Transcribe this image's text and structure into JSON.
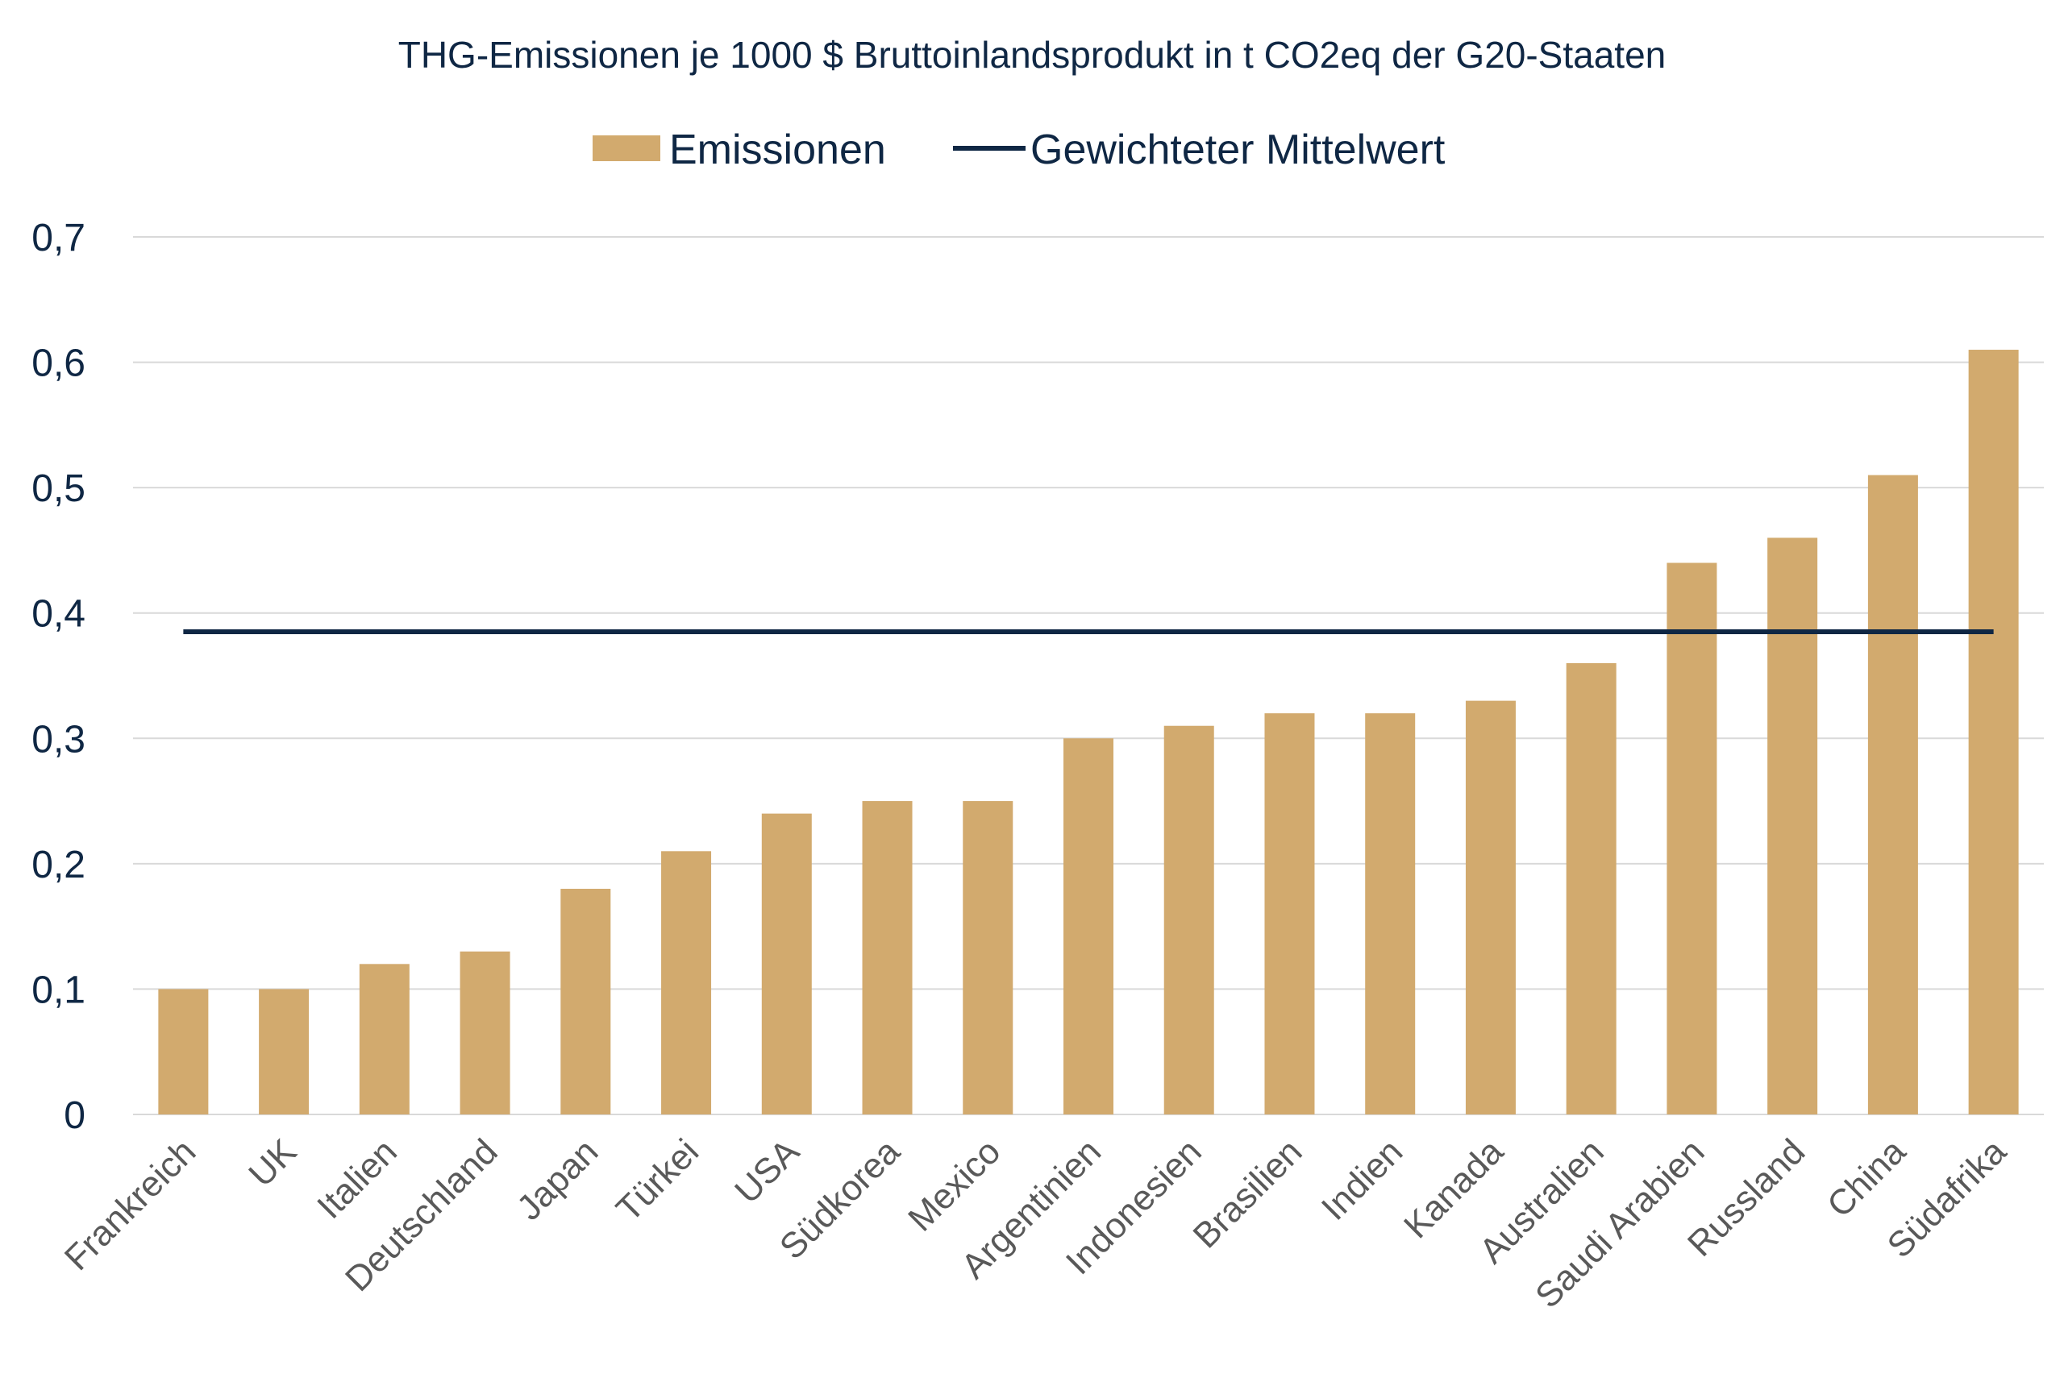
{
  "chart_data": {
    "type": "bar",
    "title": "THG-Emissionen je 1000 $ Bruttoinlandsprodukt in t CO2eq der G20-Staaten",
    "xlabel": "",
    "ylabel": "",
    "ylim": [
      0,
      0.7
    ],
    "y_ticks": [
      {
        "value": 0,
        "label": "0"
      },
      {
        "value": 0.1,
        "label": "0,1"
      },
      {
        "value": 0.2,
        "label": "0,2"
      },
      {
        "value": 0.3,
        "label": "0,3"
      },
      {
        "value": 0.4,
        "label": "0,4"
      },
      {
        "value": 0.5,
        "label": "0,5"
      },
      {
        "value": 0.6,
        "label": "0,6"
      },
      {
        "value": 0.7,
        "label": "0,7"
      }
    ],
    "grid": true,
    "legend_position": "top",
    "categories": [
      "Frankreich",
      "UK",
      "Italien",
      "Deutschland",
      "Japan",
      "Türkei",
      "USA",
      "Südkorea",
      "Mexico",
      "Argentinien",
      "Indonesien",
      "Brasilien",
      "Indien",
      "Kanada",
      "Australien",
      "Saudi Arabien",
      "Russland",
      "China",
      "Südafrika"
    ],
    "series": [
      {
        "name": "Emissionen",
        "type": "bar",
        "color": "#d2aa6e",
        "values": [
          0.1,
          0.1,
          0.12,
          0.13,
          0.18,
          0.21,
          0.24,
          0.25,
          0.25,
          0.3,
          0.31,
          0.32,
          0.32,
          0.33,
          0.36,
          0.44,
          0.46,
          0.51,
          0.61
        ]
      },
      {
        "name": "Gewichteter Mittelwert",
        "type": "line",
        "color": "#0f2744",
        "value": 0.385
      }
    ]
  }
}
